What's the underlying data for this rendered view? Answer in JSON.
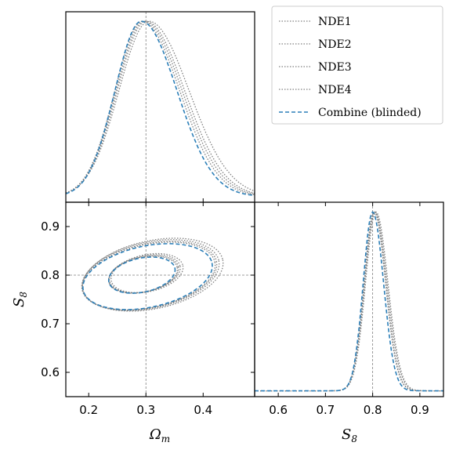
{
  "chart_data": {
    "type": "corner",
    "parameters": [
      {
        "name": "Omega_m",
        "label_main": "Ω",
        "label_sub": "m",
        "range": [
          0.16,
          0.49
        ],
        "ticks": [
          0.2,
          0.3,
          0.4
        ],
        "tick_labels": [
          "0.2",
          "0.3",
          "0.4"
        ],
        "truth": 0.3
      },
      {
        "name": "S_8",
        "label_main": "S",
        "label_sub": "8",
        "range": [
          0.55,
          0.95
        ],
        "ticks": [
          0.6,
          0.7,
          0.8,
          0.9
        ],
        "tick_labels": [
          "0.6",
          "0.7",
          "0.8",
          "0.9"
        ],
        "truth": 0.8
      }
    ],
    "series": [
      {
        "name": "NDE1",
        "style": "dotted",
        "color": "#808080",
        "omega_m": {
          "mean": 0.294,
          "sd": 0.048
        },
        "s8": {
          "mean": 0.803,
          "sd": 0.021
        },
        "contours": [
          {
            "level": "68%",
            "cx": 0.295,
            "cy": 0.801,
            "rx": 0.061,
            "ry": 0.036,
            "angle_deg": 12
          },
          {
            "level": "95%",
            "cx": 0.305,
            "cy": 0.798,
            "rx": 0.118,
            "ry": 0.065,
            "angle_deg": 12
          }
        ]
      },
      {
        "name": "NDE2",
        "style": "dotted",
        "color": "#808080",
        "omega_m": {
          "mean": 0.3,
          "sd": 0.05
        },
        "s8": {
          "mean": 0.805,
          "sd": 0.022
        },
        "contours": [
          {
            "level": "68%",
            "cx": 0.298,
            "cy": 0.803,
            "rx": 0.063,
            "ry": 0.037,
            "angle_deg": 12
          },
          {
            "level": "95%",
            "cx": 0.308,
            "cy": 0.8,
            "rx": 0.122,
            "ry": 0.068,
            "angle_deg": 12
          }
        ]
      },
      {
        "name": "NDE3",
        "style": "dotted",
        "color": "#808080",
        "omega_m": {
          "mean": 0.305,
          "sd": 0.052
        },
        "s8": {
          "mean": 0.807,
          "sd": 0.022
        },
        "contours": [
          {
            "level": "68%",
            "cx": 0.302,
            "cy": 0.804,
            "rx": 0.064,
            "ry": 0.038,
            "angle_deg": 12
          },
          {
            "level": "95%",
            "cx": 0.312,
            "cy": 0.801,
            "rx": 0.125,
            "ry": 0.07,
            "angle_deg": 12
          }
        ]
      },
      {
        "name": "NDE4",
        "style": "dotted",
        "color": "#808080",
        "omega_m": {
          "mean": 0.297,
          "sd": 0.049
        },
        "s8": {
          "mean": 0.804,
          "sd": 0.021
        },
        "contours": [
          {
            "level": "68%",
            "cx": 0.296,
            "cy": 0.802,
            "rx": 0.062,
            "ry": 0.036,
            "angle_deg": 12
          },
          {
            "level": "95%",
            "cx": 0.306,
            "cy": 0.799,
            "rx": 0.12,
            "ry": 0.066,
            "angle_deg": 12
          }
        ]
      },
      {
        "name": "Combine (blinded)",
        "style": "dashed",
        "color": "#2c7fb8",
        "omega_m": {
          "mean": 0.292,
          "sd": 0.046
        },
        "s8": {
          "mean": 0.8,
          "sd": 0.02
        },
        "contours": [
          {
            "level": "68%",
            "cx": 0.293,
            "cy": 0.8,
            "rx": 0.059,
            "ry": 0.035,
            "angle_deg": 12
          },
          {
            "level": "95%",
            "cx": 0.303,
            "cy": 0.797,
            "rx": 0.115,
            "ry": 0.063,
            "angle_deg": 12
          }
        ]
      }
    ],
    "legend_position": "top-right",
    "grid": false
  }
}
